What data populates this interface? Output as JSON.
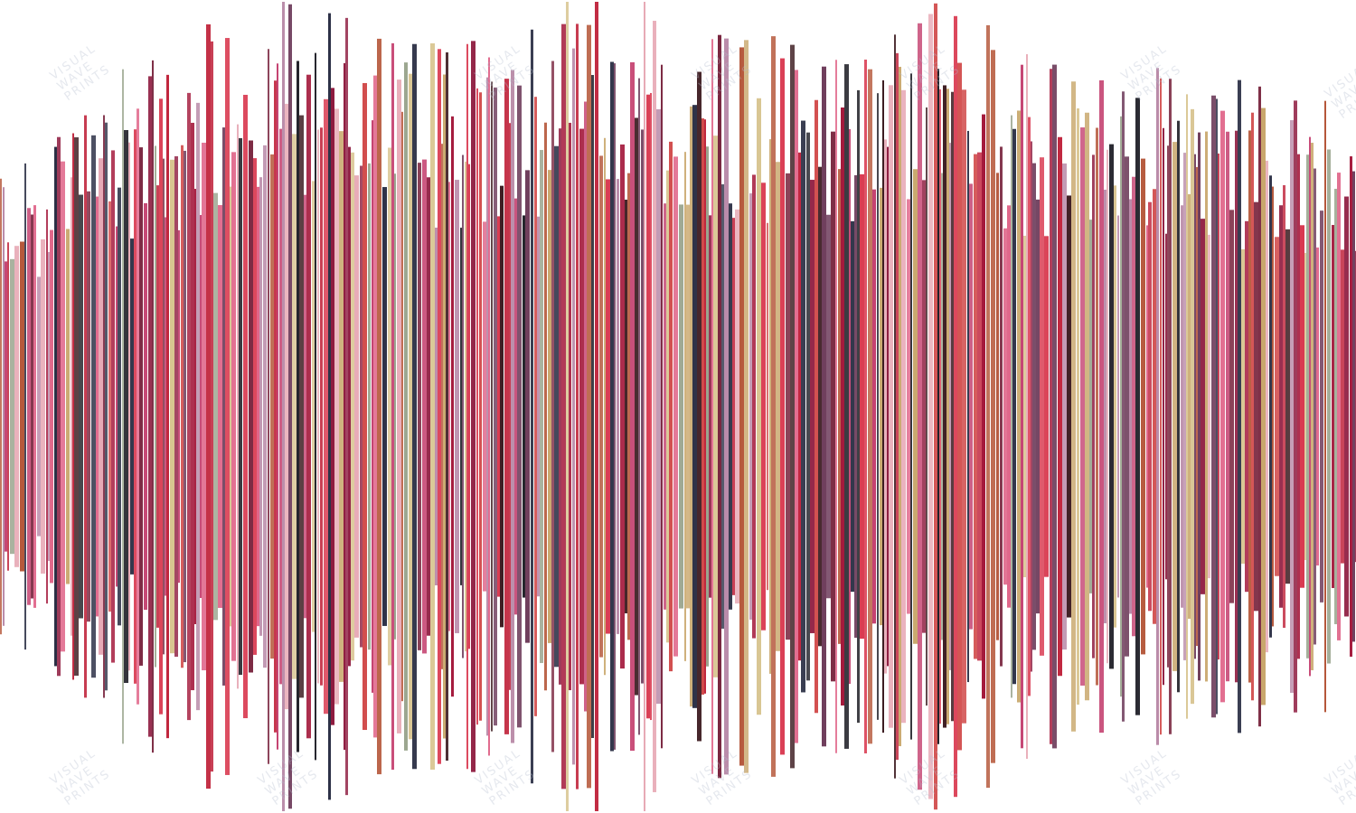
{
  "artwork": {
    "type": "sound-wave-art",
    "background": "#ffffff",
    "palette": [
      "#c0243c",
      "#a3173a",
      "#d9384f",
      "#8e1b3f",
      "#c4406f",
      "#e0668a",
      "#3b1a1f",
      "#1e1e26",
      "#c8a66a",
      "#d8c48f",
      "#b98aa8",
      "#e7a9b5",
      "#7a2740",
      "#d14a4a",
      "#6d3b5a",
      "#2b2f45",
      "#9aa58e",
      "#b5573a"
    ]
  },
  "watermark": {
    "line1": "VISUAL",
    "line2": "WAVE",
    "line3": "PRINTS"
  }
}
